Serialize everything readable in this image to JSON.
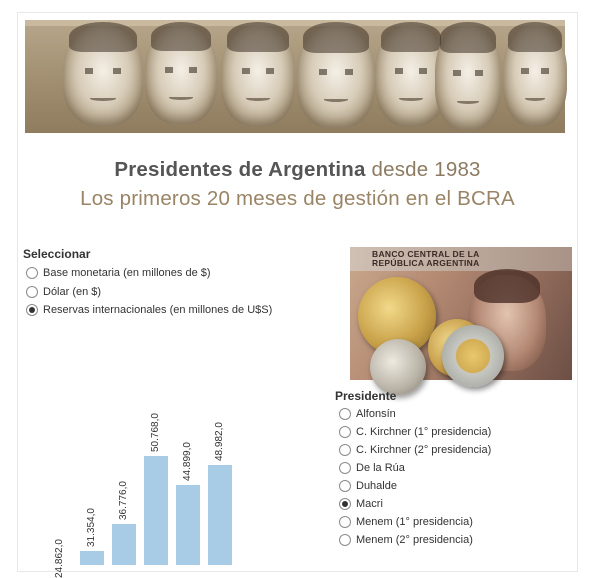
{
  "header": {
    "title_bold": "Presidentes de Argentina",
    "title_accent": "desde 1983",
    "subtitle": "Los primeros 20 meses de gestión en el BCRA"
  },
  "banner": {
    "faces": [
      "president-face-1",
      "president-face-2",
      "president-face-3",
      "president-face-4",
      "president-face-5",
      "president-face-6",
      "president-face-7"
    ]
  },
  "photo": {
    "note_text_line1": "BANCO CENTRAL DE LA",
    "note_text_line2": "REPÚBLICA ARGENTINA"
  },
  "selector": {
    "label": "Seleccionar",
    "options": [
      {
        "label": "Base monetaria (en millones de $)",
        "checked": false
      },
      {
        "label": "Dólar (en $)",
        "checked": false
      },
      {
        "label": "Reservas internacionales (en millones de U$S)",
        "checked": true
      }
    ]
  },
  "president_selector": {
    "label": "Presidente",
    "options": [
      {
        "label": "Alfonsín",
        "checked": false
      },
      {
        "label": "C. Kirchner (1° presidencia)",
        "checked": false
      },
      {
        "label": "C. Kirchner (2° presidencia)",
        "checked": false
      },
      {
        "label": "De la Rúa",
        "checked": false
      },
      {
        "label": "Duhalde",
        "checked": false
      },
      {
        "label": "Macri",
        "checked": true
      },
      {
        "label": "Menem (1° presidencia)",
        "checked": false
      },
      {
        "label": "Menem (2° presidencia)",
        "checked": false
      }
    ]
  },
  "chart_data": {
    "type": "bar",
    "values": [
      24862.0,
      31354.0,
      36776.0,
      50768.0,
      44899.0,
      48982.0
    ],
    "data_labels": [
      "24.862,0",
      "31.354,0",
      "36.776,0",
      "50.768,0",
      "44.899,0",
      "48.982,0"
    ],
    "ylim": [
      0,
      70000
    ],
    "bar_color": "#a8cbe6"
  }
}
